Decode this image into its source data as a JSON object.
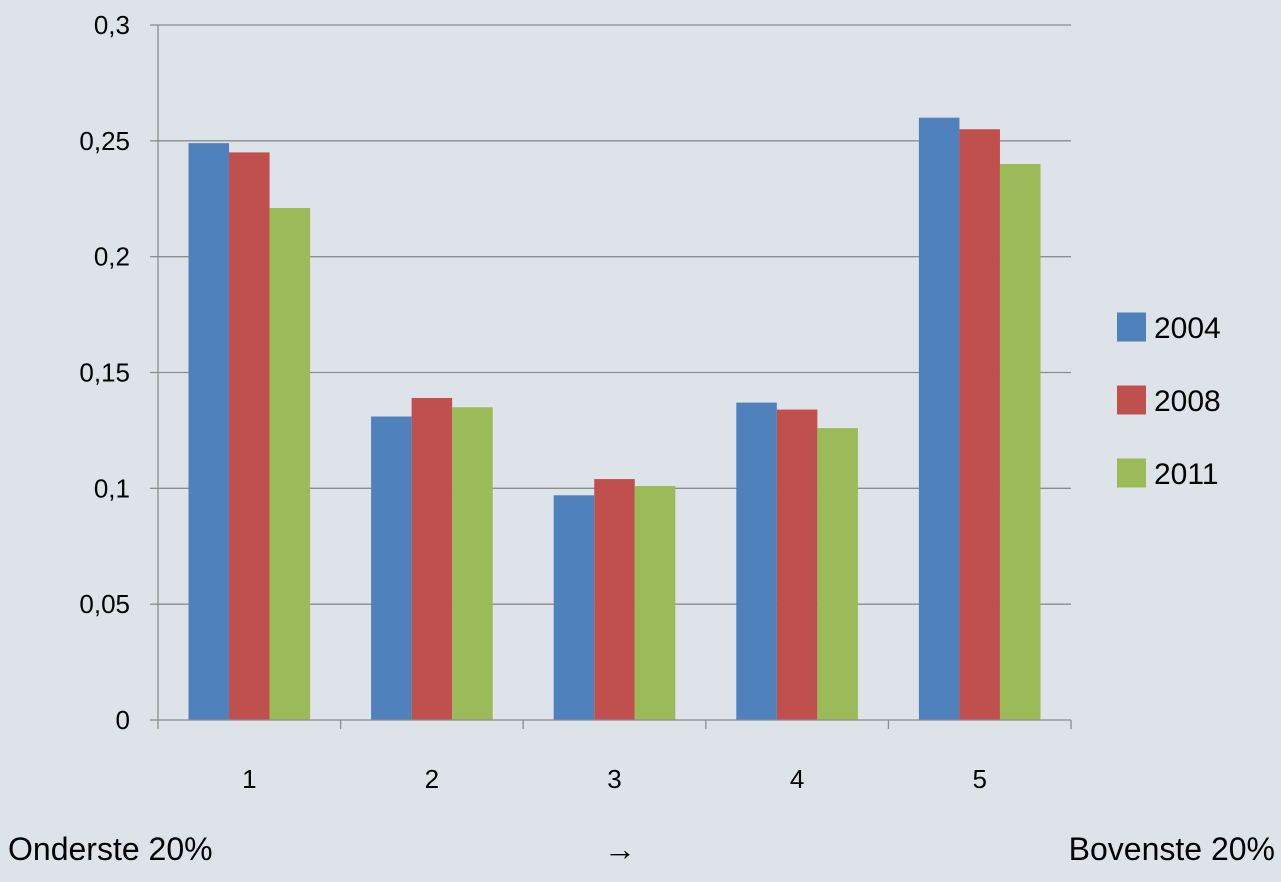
{
  "chart_data": {
    "type": "bar",
    "categories": [
      "1",
      "2",
      "3",
      "4",
      "5"
    ],
    "series": [
      {
        "name": "2004",
        "color": "#4f81bd",
        "values": [
          0.249,
          0.131,
          0.097,
          0.137,
          0.26
        ]
      },
      {
        "name": "2008",
        "color": "#c0504d",
        "values": [
          0.245,
          0.139,
          0.104,
          0.134,
          0.255
        ]
      },
      {
        "name": "2011",
        "color": "#9bbb59",
        "values": [
          0.221,
          0.135,
          0.101,
          0.126,
          0.24
        ]
      }
    ],
    "ylim": [
      0,
      0.3
    ],
    "yticks": [
      "0",
      "0,05",
      "0,1",
      "0,15",
      "0,2",
      "0,25",
      "0,3"
    ],
    "ytick_values": [
      0,
      0.05,
      0.1,
      0.15,
      0.2,
      0.25,
      0.3
    ],
    "grid": true,
    "legend_position": "right",
    "title": "",
    "xlabel": "",
    "ylabel": ""
  },
  "annotations": {
    "left": "Onderste 20%",
    "arrow": "→",
    "right": "Bovenste 20%"
  }
}
